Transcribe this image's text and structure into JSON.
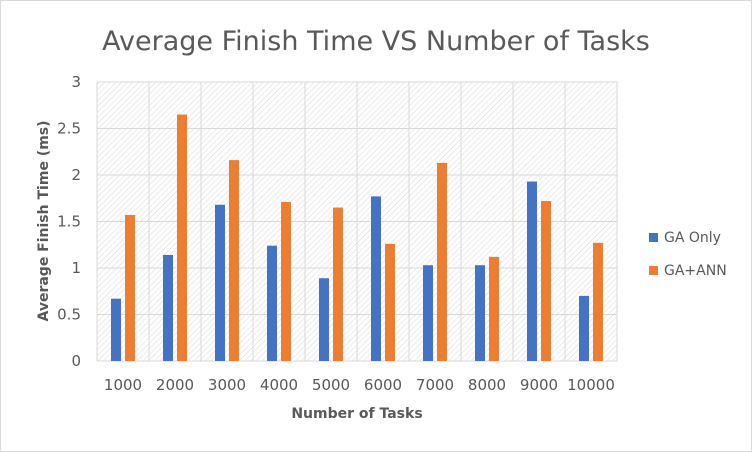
{
  "chart_data": {
    "type": "bar",
    "title": "Average Finish Time VS Number of Tasks",
    "xlabel": "Number of Tasks",
    "ylabel": "Average Finish Time  (ms)",
    "categories": [
      "1000",
      "2000",
      "3000",
      "4000",
      "5000",
      "6000",
      "7000",
      "8000",
      "9000",
      "10000"
    ],
    "series": [
      {
        "name": "GA Only",
        "color": "#4472c4",
        "values": [
          0.67,
          1.14,
          1.68,
          1.24,
          0.89,
          1.77,
          1.03,
          1.03,
          1.93,
          0.7
        ]
      },
      {
        "name": "GA+ANN",
        "color": "#ed7d31",
        "values": [
          1.57,
          2.65,
          2.16,
          1.71,
          1.65,
          1.26,
          2.13,
          1.12,
          1.72,
          1.27
        ]
      }
    ],
    "yticks": [
      "0",
      "0.5",
      "1",
      "1.5",
      "2",
      "2.5",
      "3"
    ],
    "ylim": [
      0,
      3
    ],
    "grid": true,
    "legend_position": "right"
  }
}
